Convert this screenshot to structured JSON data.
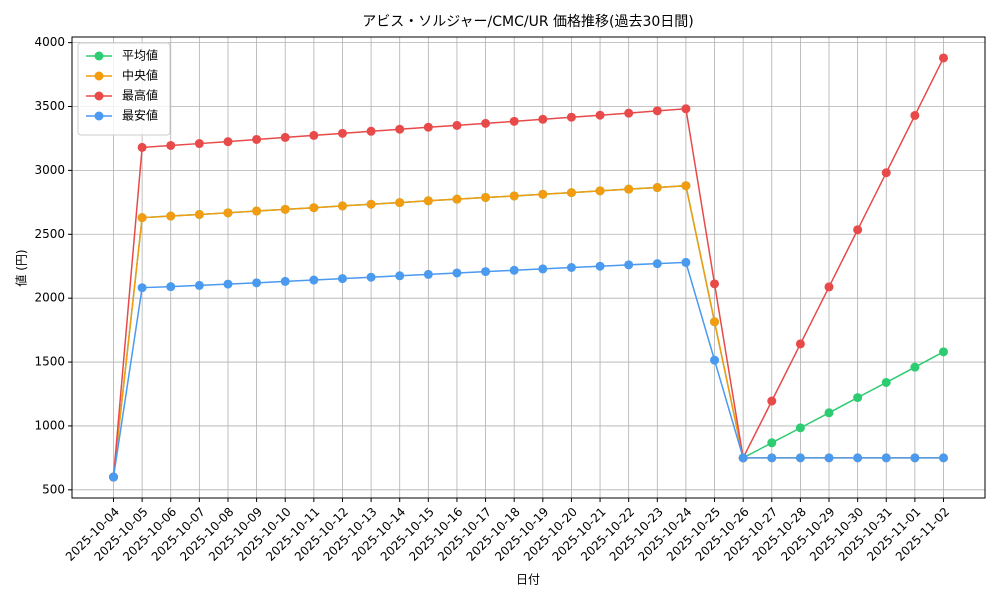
{
  "chart_data": {
    "type": "line",
    "title": "アビス・ソルジャー/CMC/UR 価格推移(過去30日間)",
    "x_label": "日付",
    "y_label": "値 (円)",
    "categories": [
      "2025-10-04",
      "2025-10-05",
      "2025-10-06",
      "2025-10-07",
      "2025-10-08",
      "2025-10-09",
      "2025-10-10",
      "2025-10-11",
      "2025-10-12",
      "2025-10-13",
      "2025-10-14",
      "2025-10-15",
      "2025-10-16",
      "2025-10-17",
      "2025-10-18",
      "2025-10-19",
      "2025-10-20",
      "2025-10-21",
      "2025-10-22",
      "2025-10-23",
      "2025-10-24",
      "2025-10-25",
      "2025-10-26",
      "2025-10-27",
      "2025-10-28",
      "2025-10-29",
      "2025-10-30",
      "2025-10-31",
      "2025-11-01",
      "2025-11-02"
    ],
    "series": [
      {
        "name": "平均値",
        "color": "#2ecc71",
        "values": [
          600,
          2630,
          2643,
          2655,
          2668,
          2682,
          2695,
          2708,
          2722,
          2735,
          2748,
          2762,
          2775,
          2788,
          2800,
          2813,
          2826,
          2840,
          2853,
          2866,
          2880,
          1815,
          750,
          868,
          985,
          1103,
          1222,
          1340,
          1460,
          1580
        ]
      },
      {
        "name": "中央値",
        "color": "#f39c12",
        "values": [
          600,
          2630,
          2643,
          2655,
          2668,
          2682,
          2695,
          2708,
          2722,
          2735,
          2748,
          2762,
          2775,
          2788,
          2800,
          2813,
          2826,
          2840,
          2853,
          2866,
          2880,
          1815,
          750,
          750,
          750,
          750,
          750,
          750,
          750,
          750
        ]
      },
      {
        "name": "最高値",
        "color": "#e84a4a",
        "values": [
          600,
          3180,
          3195,
          3210,
          3225,
          3242,
          3258,
          3274,
          3290,
          3306,
          3322,
          3338,
          3352,
          3368,
          3384,
          3400,
          3416,
          3432,
          3448,
          3466,
          3482,
          2112,
          750,
          1195,
          1642,
          2088,
          2535,
          2982,
          3430,
          3880
        ]
      },
      {
        "name": "最安値",
        "color": "#4a9af0",
        "values": [
          600,
          2082,
          2090,
          2100,
          2110,
          2120,
          2131,
          2142,
          2153,
          2164,
          2175,
          2186,
          2197,
          2208,
          2218,
          2229,
          2240,
          2250,
          2261,
          2270,
          2280,
          1515,
          750,
          750,
          750,
          750,
          750,
          750,
          750,
          750
        ]
      }
    ],
    "ylim": [
      436,
      4044
    ],
    "yticks": [
      500,
      1000,
      1500,
      2000,
      2500,
      3000,
      3500,
      4000
    ],
    "grid": true,
    "legend": "upper-left"
  }
}
